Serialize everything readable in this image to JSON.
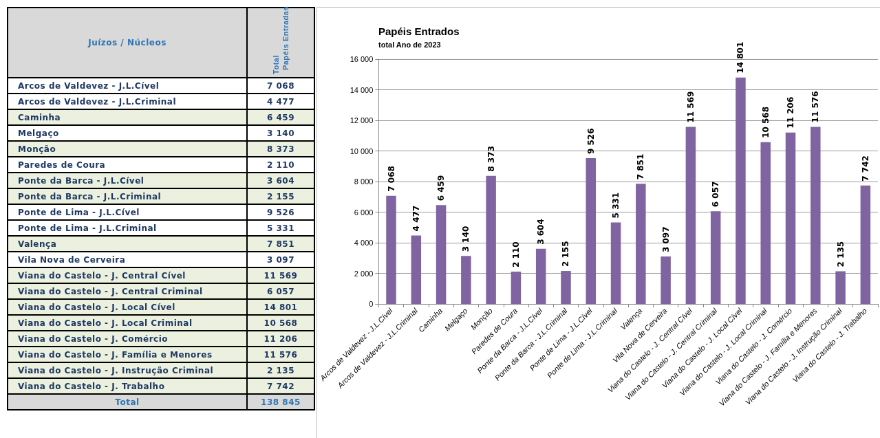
{
  "chart_data": {
    "type": "bar",
    "title": "Papéis Entrados",
    "subtitle": "total Ano de 2023",
    "categories": [
      "Arcos de Valdevez - J.L.Cível",
      "Arcos de Valdevez - J.L.Criminal",
      "Caminha",
      "Melgaço",
      "Monção",
      "Paredes de Coura",
      "Ponte da Barca - J.L.Cível",
      "Ponte da Barca - J.L.Criminal",
      "Ponte de Lima - J.L.Cível",
      "Ponte de Lima - J.L.Criminal",
      "Valença",
      "Vila Nova de Cerveira",
      "Viana do Castelo - J. Central Cível",
      "Viana do Castelo - J. Central Criminal",
      "Viana do Castelo - J. Local Cível",
      "Viana do Castelo - J. Local Criminal",
      "Viana do Castelo - J. Comércio",
      "Viana do Castelo - J. Família e Menores",
      "Viana do Castelo - J. Instrução Criminal",
      "Viana do Castelo - J. Trabalho"
    ],
    "values": [
      7068,
      4477,
      6459,
      3140,
      8373,
      2110,
      3604,
      2155,
      9526,
      5331,
      7851,
      3097,
      11569,
      6057,
      14801,
      10568,
      11206,
      11576,
      2135,
      7742
    ],
    "value_labels": [
      "7 068",
      "4 477",
      "6 459",
      "3 140",
      "8 373",
      "2 110",
      "3 604",
      "2 155",
      "9 526",
      "5 331",
      "7 851",
      "3 097",
      "11 569",
      "6 057",
      "14 801",
      "10 568",
      "11 206",
      "11 576",
      "2 135",
      "7 742"
    ],
    "color": "#8064a2",
    "ylim": [
      0,
      16000
    ],
    "yticks": [
      0,
      {
        "value": 2000,
        "label": "2 000"
      },
      {
        "value": 4000,
        "label": "4 000"
      },
      {
        "value": 6000,
        "label": "6 000"
      },
      {
        "value": 8000,
        "label": "8 000"
      },
      {
        "value": 10000,
        "label": "10 000"
      },
      {
        "value": 12000,
        "label": "12 000"
      },
      {
        "value": 14000,
        "label": "14 000"
      },
      {
        "value": 16000,
        "label": "16 000"
      }
    ],
    "grid": "y",
    "annotations": [
      "Juízos / Núcleos",
      "Total",
      "Papéis Entradas",
      "Total",
      "138 845"
    ]
  }
}
